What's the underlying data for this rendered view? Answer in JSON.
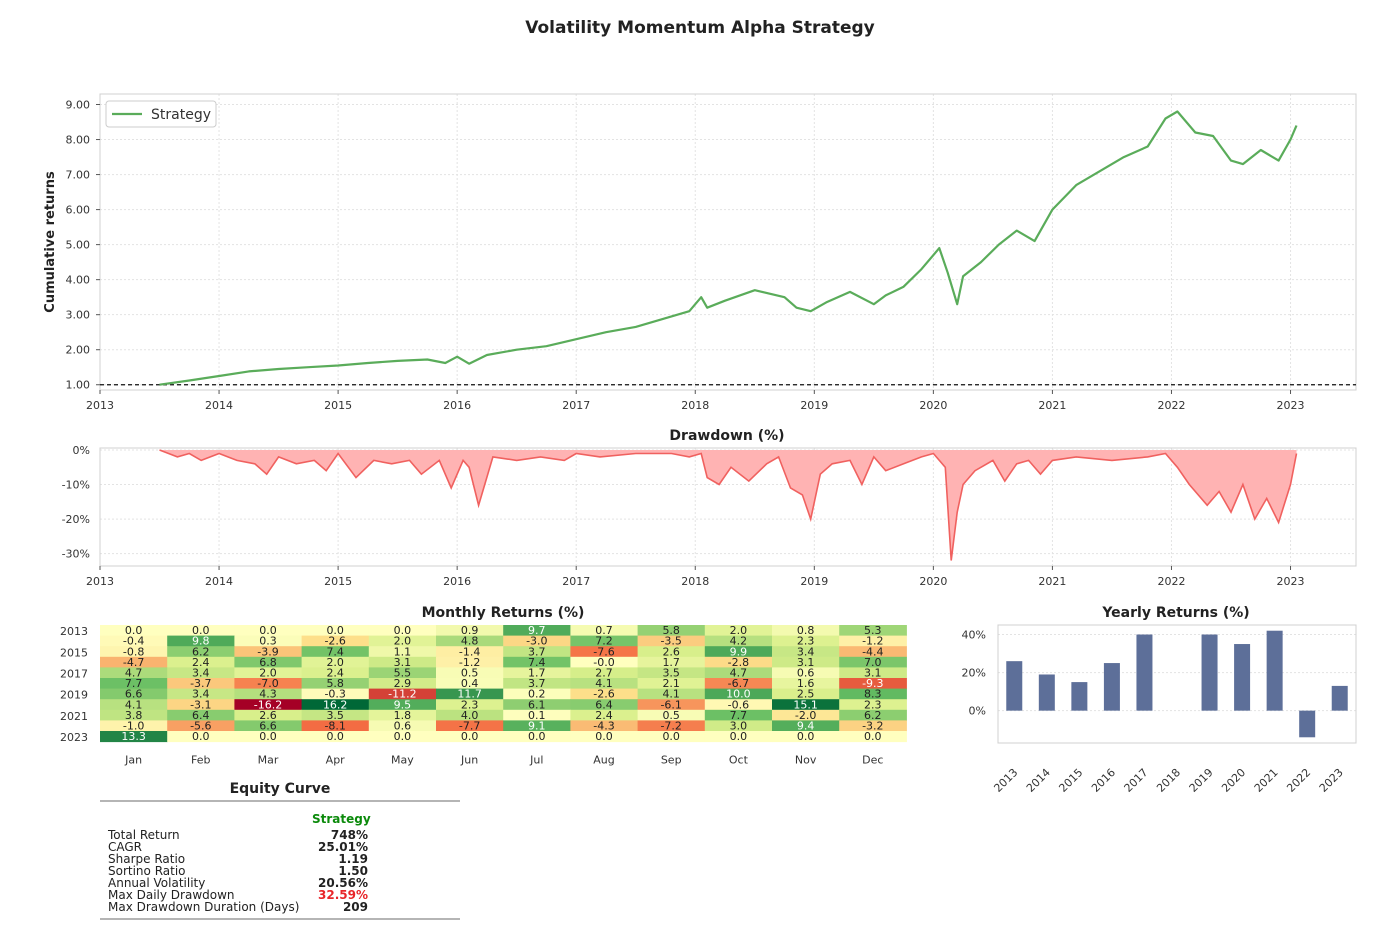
{
  "title": "Volatility Momentum Alpha Strategy",
  "colors": {
    "strategy_line": "#5aac5a",
    "drawdown": "#f0615f",
    "drawdown_fill": "#ffb3b3",
    "yearly_bar": "#5d6f99",
    "stats_header": "#0b8a0b",
    "max_drawdown_value": "#e8262a"
  },
  "chart_data": [
    {
      "type": "line",
      "ylabel": "Cumulative returns",
      "legend": "top-left",
      "grid": true,
      "xlim": [
        2013,
        2023.55
      ],
      "ylim": [
        0.85,
        9.3
      ],
      "x_ticks": [
        "2013",
        "2014",
        "2015",
        "2016",
        "2017",
        "2018",
        "2019",
        "2020",
        "2021",
        "2022",
        "2023"
      ],
      "y_ticks": [
        "1.00",
        "2.00",
        "3.00",
        "4.00",
        "5.00",
        "6.00",
        "7.00",
        "8.00",
        "9.00"
      ],
      "baseline": 1.0,
      "series": [
        {
          "name": "Strategy",
          "x": [
            2013.5,
            2013.75,
            2014.0,
            2014.25,
            2014.5,
            2014.75,
            2015.0,
            2015.25,
            2015.5,
            2015.75,
            2015.9,
            2016.0,
            2016.1,
            2016.25,
            2016.5,
            2016.75,
            2017.0,
            2017.25,
            2017.5,
            2017.75,
            2017.95,
            2018.05,
            2018.1,
            2018.25,
            2018.5,
            2018.75,
            2018.85,
            2018.97,
            2019.1,
            2019.3,
            2019.5,
            2019.6,
            2019.75,
            2019.9,
            2020.05,
            2020.12,
            2020.2,
            2020.25,
            2020.4,
            2020.55,
            2020.7,
            2020.85,
            2021.0,
            2021.2,
            2021.4,
            2021.6,
            2021.8,
            2021.95,
            2022.05,
            2022.2,
            2022.35,
            2022.5,
            2022.6,
            2022.75,
            2022.9,
            2023.0,
            2023.05
          ],
          "y": [
            1.0,
            1.12,
            1.25,
            1.38,
            1.45,
            1.5,
            1.55,
            1.62,
            1.68,
            1.72,
            1.62,
            1.8,
            1.6,
            1.85,
            2.0,
            2.1,
            2.3,
            2.5,
            2.65,
            2.9,
            3.1,
            3.5,
            3.2,
            3.4,
            3.7,
            3.5,
            3.2,
            3.1,
            3.35,
            3.65,
            3.3,
            3.55,
            3.8,
            4.3,
            4.9,
            4.2,
            3.3,
            4.1,
            4.5,
            5.0,
            5.4,
            5.1,
            6.0,
            6.7,
            7.1,
            7.5,
            7.8,
            8.6,
            8.8,
            8.2,
            8.1,
            7.4,
            7.3,
            7.7,
            7.4,
            8.0,
            8.4
          ]
        }
      ]
    },
    {
      "type": "area",
      "title": "Drawdown (%)",
      "xlim": [
        2013,
        2023.55
      ],
      "ylim": [
        -33,
        0
      ],
      "x_ticks": [
        "2013",
        "2014",
        "2015",
        "2016",
        "2017",
        "2018",
        "2019",
        "2020",
        "2021",
        "2022",
        "2023"
      ],
      "y_ticks": [
        "0%",
        "-10%",
        "-20%",
        "-30%"
      ],
      "series": [
        {
          "name": "Drawdown",
          "x": [
            2013.5,
            2013.65,
            2013.75,
            2013.85,
            2014.0,
            2014.15,
            2014.3,
            2014.4,
            2014.5,
            2014.65,
            2014.8,
            2014.9,
            2015.0,
            2015.15,
            2015.3,
            2015.45,
            2015.6,
            2015.7,
            2015.85,
            2015.95,
            2016.05,
            2016.1,
            2016.18,
            2016.3,
            2016.5,
            2016.7,
            2016.9,
            2017.0,
            2017.2,
            2017.5,
            2017.8,
            2017.95,
            2018.05,
            2018.1,
            2018.2,
            2018.3,
            2018.45,
            2018.6,
            2018.7,
            2018.8,
            2018.9,
            2018.97,
            2019.05,
            2019.15,
            2019.3,
            2019.4,
            2019.5,
            2019.6,
            2019.75,
            2019.9,
            2020.0,
            2020.1,
            2020.15,
            2020.2,
            2020.25,
            2020.35,
            2020.5,
            2020.6,
            2020.7,
            2020.8,
            2020.9,
            2021.0,
            2021.2,
            2021.5,
            2021.8,
            2021.95,
            2022.05,
            2022.15,
            2022.3,
            2022.4,
            2022.5,
            2022.6,
            2022.7,
            2022.8,
            2022.9,
            2023.0,
            2023.05
          ],
          "y": [
            0,
            -2,
            -1,
            -3,
            -1,
            -3,
            -4,
            -7,
            -2,
            -4,
            -3,
            -6,
            -1,
            -8,
            -3,
            -4,
            -3,
            -7,
            -3,
            -11,
            -3,
            -5,
            -16,
            -2,
            -3,
            -2,
            -3,
            -1,
            -2,
            -1,
            -1,
            -2,
            -1,
            -8,
            -10,
            -5,
            -9,
            -4,
            -2,
            -11,
            -13,
            -20,
            -7,
            -4,
            -3,
            -10,
            -2,
            -6,
            -4,
            -2,
            -1,
            -5,
            -32,
            -18,
            -10,
            -6,
            -3,
            -9,
            -4,
            -3,
            -7,
            -3,
            -2,
            -3,
            -2,
            -1,
            -5,
            -10,
            -16,
            -12,
            -18,
            -10,
            -20,
            -14,
            -21,
            -10,
            -1
          ]
        }
      ]
    },
    {
      "type": "heatmap",
      "title": "Monthly Returns (%)",
      "columns": [
        "Jan",
        "Feb",
        "Mar",
        "Apr",
        "May",
        "Jun",
        "Jul",
        "Aug",
        "Sep",
        "Oct",
        "Nov",
        "Dec"
      ],
      "rows": [
        "2013",
        "2014",
        "2015",
        "2016",
        "2017",
        "2018",
        "2019",
        "2020",
        "2021",
        "2022",
        "2023"
      ],
      "y_tick_labels": [
        "2013",
        "2015",
        "2017",
        "2019",
        "2021",
        "2023"
      ],
      "values": [
        [
          "0.0",
          "0.0",
          "0.0",
          "0.0",
          "0.0",
          "0.9",
          "9.7",
          "0.7",
          "5.8",
          "2.0",
          "0.8",
          "5.3"
        ],
        [
          "-0.4",
          "9.8",
          "0.3",
          "-2.6",
          "2.0",
          "4.8",
          "-3.0",
          "7.2",
          "-3.5",
          "4.2",
          "2.3",
          "-1.2"
        ],
        [
          "-0.8",
          "6.2",
          "-3.9",
          "7.4",
          "1.1",
          "-1.4",
          "3.7",
          "-7.6",
          "2.6",
          "9.9",
          "3.4",
          "-4.4"
        ],
        [
          "-4.7",
          "2.4",
          "6.8",
          "2.0",
          "3.1",
          "-1.2",
          "7.4",
          "-0.0",
          "1.7",
          "-2.8",
          "3.1",
          "7.0"
        ],
        [
          "4.7",
          "3.4",
          "2.0",
          "2.4",
          "5.5",
          "0.5",
          "1.7",
          "2.7",
          "3.5",
          "4.7",
          "0.6",
          "3.1"
        ],
        [
          "7.7",
          "-3.7",
          "-7.0",
          "5.8",
          "2.9",
          "0.4",
          "3.7",
          "4.1",
          "2.1",
          "-6.7",
          "1.6",
          "-9.3"
        ],
        [
          "6.6",
          "3.4",
          "4.3",
          "-0.3",
          "-11.2",
          "11.7",
          "0.2",
          "-2.6",
          "4.1",
          "10.0",
          "2.5",
          "8.3"
        ],
        [
          "4.1",
          "-3.1",
          "-16.2",
          "16.2",
          "9.5",
          "2.3",
          "6.1",
          "6.4",
          "-6.1",
          "-0.6",
          "15.1",
          "2.3"
        ],
        [
          "3.8",
          "6.4",
          "2.6",
          "3.5",
          "1.8",
          "4.0",
          "0.1",
          "2.4",
          "0.5",
          "7.7",
          "-2.0",
          "6.2"
        ],
        [
          "-1.0",
          "-5.6",
          "6.6",
          "-8.1",
          "0.6",
          "-7.7",
          "9.1",
          "-4.3",
          "-7.2",
          "3.0",
          "9.4",
          "-3.2"
        ],
        [
          "13.3",
          "0.0",
          "0.0",
          "0.0",
          "0.0",
          "0.0",
          "0.0",
          "0.0",
          "0.0",
          "0.0",
          "0.0",
          "0.0"
        ]
      ]
    },
    {
      "type": "bar",
      "title": "Yearly Returns (%)",
      "categories": [
        "2013",
        "2014",
        "2015",
        "2016",
        "2017",
        "2018",
        "2019",
        "2020",
        "2021",
        "2022",
        "2023"
      ],
      "values": [
        26,
        19,
        15,
        25,
        40,
        0,
        40,
        35,
        42,
        -14,
        13
      ],
      "ylim": [
        -17,
        45
      ],
      "y_ticks": [
        "0%",
        "20%",
        "40%"
      ],
      "grid": true
    }
  ],
  "stats": {
    "title": "Equity Curve",
    "column": "Strategy",
    "rows": [
      {
        "label": "Total Return",
        "value": "748%"
      },
      {
        "label": "CAGR",
        "value": "25.01%"
      },
      {
        "label": "Sharpe Ratio",
        "value": "1.19"
      },
      {
        "label": "Sortino Ratio",
        "value": "1.50"
      },
      {
        "label": "Annual Volatility",
        "value": "20.56%"
      },
      {
        "label": "Max Daily Drawdown",
        "value": "32.59%"
      },
      {
        "label": "Max Drawdown Duration (Days)",
        "value": "209"
      }
    ]
  }
}
